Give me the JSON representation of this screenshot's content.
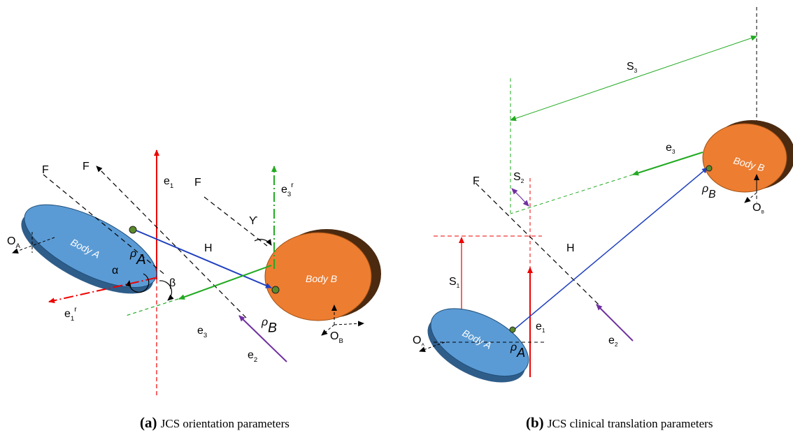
{
  "panel_a": {
    "caption": {
      "tag": "(a)",
      "text": "JCS orientation parameters"
    },
    "labels": {
      "f1": "F",
      "f2": "F",
      "f3": "F",
      "e1": {
        "base": "e",
        "sub": "1"
      },
      "e3r": {
        "base": "e",
        "sub": "3",
        "sup": "r"
      },
      "gamma": "ϒ",
      "h": "H",
      "rho_a": {
        "base": "ρ",
        "sub": "A"
      },
      "rho_b": {
        "base": "ρ",
        "sub": "B"
      },
      "alpha": "α",
      "beta": "β",
      "e3": {
        "base": "e",
        "sub": "3"
      },
      "e2": {
        "base": "e",
        "sub": "2"
      },
      "e1r": {
        "base": "e",
        "sub": "1",
        "sup": "r"
      },
      "o_a": {
        "base": "O",
        "sub": "A"
      },
      "o_b": {
        "base": "O",
        "sub": "B"
      },
      "body_a": "Body A",
      "body_b": "Body B"
    }
  },
  "panel_b": {
    "caption": {
      "tag": "(b)",
      "text": "JCS clinical translation parameters"
    },
    "labels": {
      "s3": {
        "base": "S",
        "sub": "3"
      },
      "e3": {
        "base": "e",
        "sub": "3"
      },
      "body_b": "Body B",
      "rho_b": {
        "base": "ρ",
        "sub": "B"
      },
      "o_b": {
        "base": "O",
        "sub": "B"
      },
      "f": "F",
      "s2": {
        "base": "S",
        "sub": "2"
      },
      "h": "H",
      "s1": {
        "base": "S",
        "sub": "1"
      },
      "e1": {
        "base": "e",
        "sub": "1"
      },
      "e2": {
        "base": "e",
        "sub": "2"
      },
      "o_a": {
        "base": "O",
        "sub": "A"
      },
      "body_a": "Body A",
      "rho_a": {
        "base": "ρ",
        "sub": "A"
      }
    }
  }
}
